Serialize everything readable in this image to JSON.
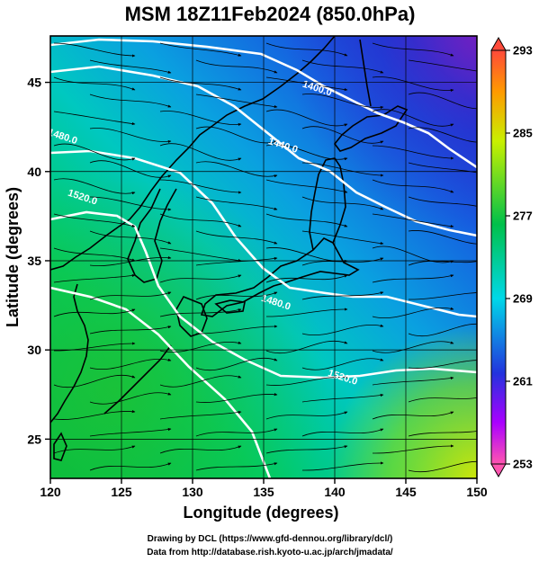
{
  "title": "MSM 18Z11Feb2024 (850.0hPa)",
  "xlabel": "Longitude (degrees)",
  "ylabel": "Latitude  (degrees)",
  "credits": [
    "Drawing by DCL (https://www.gfd-dennou.org/library/dcl/)",
    "Data from http://database.rish.kyoto-u.ac.jp/arch/jmadata/"
  ],
  "map": {
    "lon_range": [
      120,
      150
    ],
    "lat_range": [
      22.8,
      47.6
    ],
    "lon_ticks": [
      120,
      125,
      130,
      135,
      140,
      145,
      150
    ],
    "lat_ticks": [
      25,
      30,
      35,
      40,
      45
    ],
    "gridlines": true
  },
  "colorbar": {
    "min": 253,
    "max": 293,
    "labels": [
      253,
      261,
      269,
      277,
      285,
      293
    ],
    "colors": [
      "#ff55b0",
      "#aa00ff",
      "#2233dd",
      "#00d8e8",
      "#00c04a",
      "#c8f000",
      "#ff9a00",
      "#ff4a3a"
    ]
  },
  "contours": [
    {
      "label": "1400.0",
      "lon": 138.7,
      "lat": 44.5
    },
    {
      "label": "1440.0",
      "lon": 136.3,
      "lat": 41.3
    },
    {
      "label": "1480.0",
      "lon": 120.8,
      "lat": 41.8
    },
    {
      "label": "1520.0",
      "lon": 122.2,
      "lat": 38.4
    },
    {
      "label": "1480.0",
      "lon": 135.8,
      "lat": 32.5
    },
    {
      "label": "1520.0",
      "lon": 140.5,
      "lat": 28.3
    }
  ]
}
